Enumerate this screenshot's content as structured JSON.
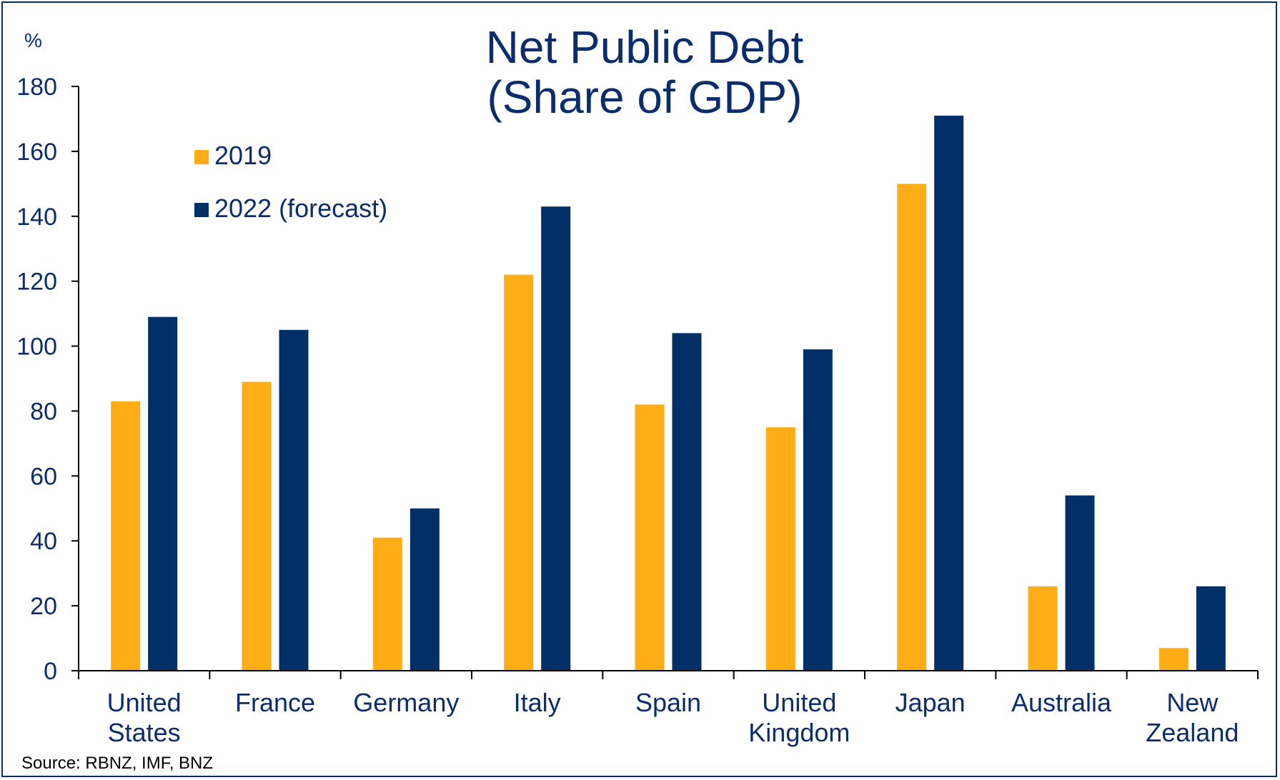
{
  "chart_data": {
    "type": "bar",
    "title": [
      "Net Public Debt",
      "(Share of GDP)"
    ],
    "ylabel": "%",
    "source": "Source: RBNZ, IMF, BNZ",
    "ylim": [
      0,
      180
    ],
    "yticks": [
      0,
      20,
      40,
      60,
      80,
      100,
      120,
      140,
      160,
      180
    ],
    "grid": false,
    "legend_position": "top-left",
    "categories": [
      [
        "United",
        "States"
      ],
      [
        "France"
      ],
      [
        "Germany"
      ],
      [
        "Italy"
      ],
      [
        "Spain"
      ],
      [
        "United",
        "Kingdom"
      ],
      [
        "Japan"
      ],
      [
        "Australia"
      ],
      [
        "New",
        "Zealand"
      ]
    ],
    "series": [
      {
        "name": "2019",
        "color": "#ffad17",
        "values": [
          83,
          89,
          41,
          122,
          82,
          75,
          150,
          26,
          7
        ]
      },
      {
        "name": "2022 (forecast)",
        "color": "#003067",
        "values": [
          109,
          105,
          50,
          143,
          104,
          99,
          171,
          54,
          26
        ]
      }
    ],
    "text_color": "#0b2d6b"
  }
}
